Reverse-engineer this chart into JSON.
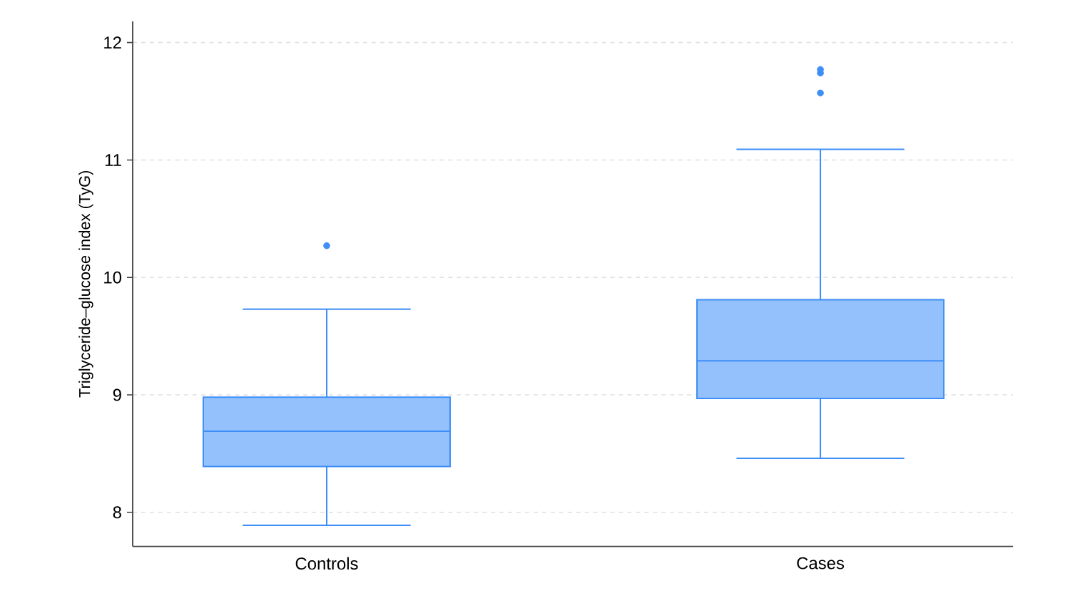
{
  "chart_data": {
    "type": "box",
    "ylabel": "Triglyceride–glucose index (TyG)",
    "categories": [
      "Controls",
      "Cases"
    ],
    "series": [
      {
        "color": "#3d8ef7",
        "boxes": [
          {
            "low": 7.89,
            "q1": 8.39,
            "median": 8.69,
            "q3": 8.98,
            "high": 9.73,
            "outliers": [
              10.27
            ]
          },
          {
            "low": 8.46,
            "q1": 8.97,
            "median": 9.29,
            "q3": 9.81,
            "high": 11.09,
            "outliers": [
              11.57,
              11.74,
              11.77
            ]
          }
        ]
      }
    ],
    "ylim": [
      7.71,
      12.18
    ],
    "yticks": [
      8,
      9,
      10,
      11,
      12
    ],
    "grid": "y",
    "marker": "circle"
  }
}
